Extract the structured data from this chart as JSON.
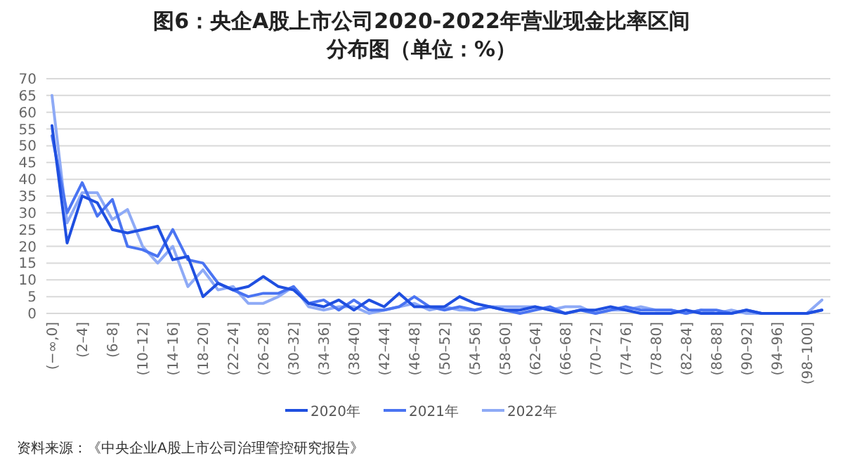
{
  "chart_data": {
    "type": "line",
    "title": "图6：央企A股上市公司2020-2022年营业现金比率区间",
    "subtitle": "分布图（单位：%）",
    "categories": [
      "(−∞,0]",
      null,
      "(2–4]",
      null,
      "(6–8]",
      null,
      "(10–12]",
      null,
      "(14–16]",
      null,
      "(18–20]",
      null,
      "(22–24]",
      null,
      "(26–28]",
      null,
      "(30–32]",
      null,
      "(34–36]",
      null,
      "(38–40]",
      null,
      "(42–44]",
      null,
      "(46–48]",
      null,
      "(50–52]",
      null,
      "(54–56]",
      null,
      "(58–60]",
      null,
      "(62–64]",
      null,
      "(66–68]",
      null,
      "(70–72]",
      null,
      "(74–76]",
      null,
      "(78–80]",
      null,
      "(82–84]",
      null,
      "(86–88]",
      null,
      "(90–92]",
      null,
      "(94–96]",
      null,
      "(98–100]",
      null
    ],
    "series": [
      {
        "name": "2020年",
        "color": "#1f4fe0",
        "values": [
          56,
          21,
          35,
          33,
          25,
          24,
          25,
          26,
          16,
          17,
          5,
          9,
          7,
          8,
          11,
          8,
          7,
          3,
          2,
          4,
          1,
          4,
          2,
          6,
          2,
          2,
          2,
          5,
          3,
          2,
          1,
          1,
          2,
          1,
          0,
          1,
          1,
          2,
          1,
          0,
          0,
          0,
          1,
          0,
          0,
          0,
          1,
          0,
          0,
          0,
          0,
          1
        ]
      },
      {
        "name": "2021年",
        "color": "#4a74f2",
        "values": [
          53,
          30,
          39,
          29,
          34,
          20,
          19,
          17,
          25,
          16,
          15,
          9,
          7,
          5,
          6,
          6,
          8,
          3,
          4,
          1,
          4,
          1,
          1,
          2,
          5,
          2,
          1,
          2,
          1,
          2,
          1,
          0,
          1,
          2,
          0,
          1,
          0,
          1,
          2,
          1,
          1,
          1,
          0,
          1,
          1,
          0,
          1,
          0,
          0,
          0,
          0,
          1
        ]
      },
      {
        "name": "2022年",
        "color": "#8eaaf6",
        "values": [
          65,
          27,
          36,
          36,
          28,
          31,
          20,
          15,
          20,
          8,
          13,
          7,
          8,
          3,
          3,
          5,
          8,
          2,
          1,
          2,
          2,
          0,
          1,
          2,
          3,
          1,
          2,
          1,
          1,
          2,
          2,
          2,
          2,
          1,
          2,
          2,
          0,
          1,
          1,
          2,
          1,
          1,
          0,
          1,
          0,
          1,
          0,
          0,
          0,
          0,
          0,
          4
        ]
      }
    ],
    "ylim": [
      0,
      70
    ],
    "yticks": [
      0,
      5,
      10,
      15,
      20,
      25,
      30,
      35,
      40,
      45,
      50,
      55,
      60,
      65,
      70
    ],
    "grid": "y",
    "legend": "bottom",
    "marker": "none",
    "line_style": "solid",
    "annotations": [
      "资料来源：《中央企业A股上市公司治理管控研究报告》"
    ]
  }
}
